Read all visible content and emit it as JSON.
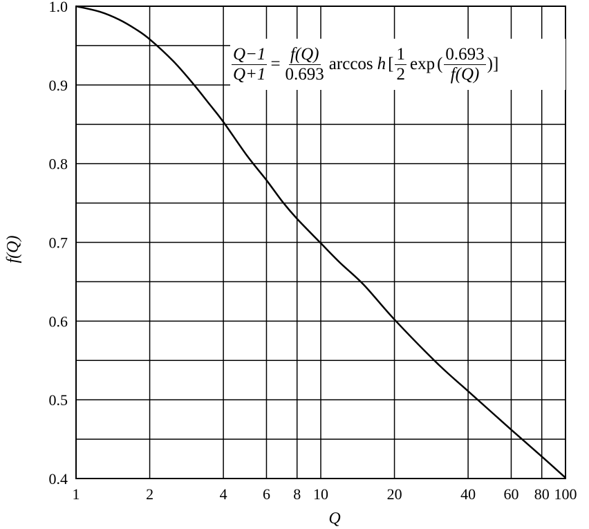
{
  "chart_data": {
    "type": "line",
    "title": "",
    "xlabel": "Q",
    "ylabel": "f(Q)",
    "x_scale": "log",
    "xlim": [
      1,
      100
    ],
    "ylim": [
      0.4,
      1.0
    ],
    "grid": true,
    "x_ticks": [
      1,
      2,
      4,
      6,
      8,
      10,
      20,
      40,
      60,
      80,
      100
    ],
    "x_tick_labels": [
      "1",
      "2",
      "4",
      "6",
      "8",
      "10",
      "20",
      "40",
      "60",
      "80",
      "100"
    ],
    "y_ticks": [
      0.4,
      0.5,
      0.6,
      0.7,
      0.8,
      0.9,
      1.0
    ],
    "y_tick_labels": [
      "0.4",
      "0.5",
      "0.6",
      "0.7",
      "0.8",
      "0.9",
      "1.0"
    ],
    "y_minor_grid": [
      0.45,
      0.55,
      0.65,
      0.75,
      0.85,
      0.95
    ],
    "series": [
      {
        "x": [
          1,
          1.25,
          1.5,
          1.75,
          2,
          2.5,
          3,
          3.5,
          4,
          5,
          6,
          7,
          8,
          10,
          12,
          15,
          20,
          30,
          40,
          50,
          60,
          80,
          100
        ],
        "y": [
          1.0,
          0.993,
          0.983,
          0.971,
          0.958,
          0.93,
          0.902,
          0.876,
          0.853,
          0.81,
          0.779,
          0.751,
          0.73,
          0.699,
          0.674,
          0.646,
          0.602,
          0.546,
          0.511,
          0.484,
          0.462,
          0.428,
          0.401
        ]
      }
    ],
    "annotation": {
      "eq_lhs_num": "Q−1",
      "eq_lhs_den": "Q+1",
      "eq_equals": "=",
      "eq_rhs_num": "f(Q)",
      "eq_rhs_den": "0.693",
      "eq_func": "arccos",
      "eq_h": "h",
      "eq_lbracket": "[",
      "eq_half_num": "1",
      "eq_half_den": "2",
      "eq_exp": "exp",
      "eq_lparen": "(",
      "eq_inner_num": "0.693",
      "eq_inner_den": "f(Q)",
      "eq_rparen": ")",
      "eq_rbracket": "]"
    }
  }
}
